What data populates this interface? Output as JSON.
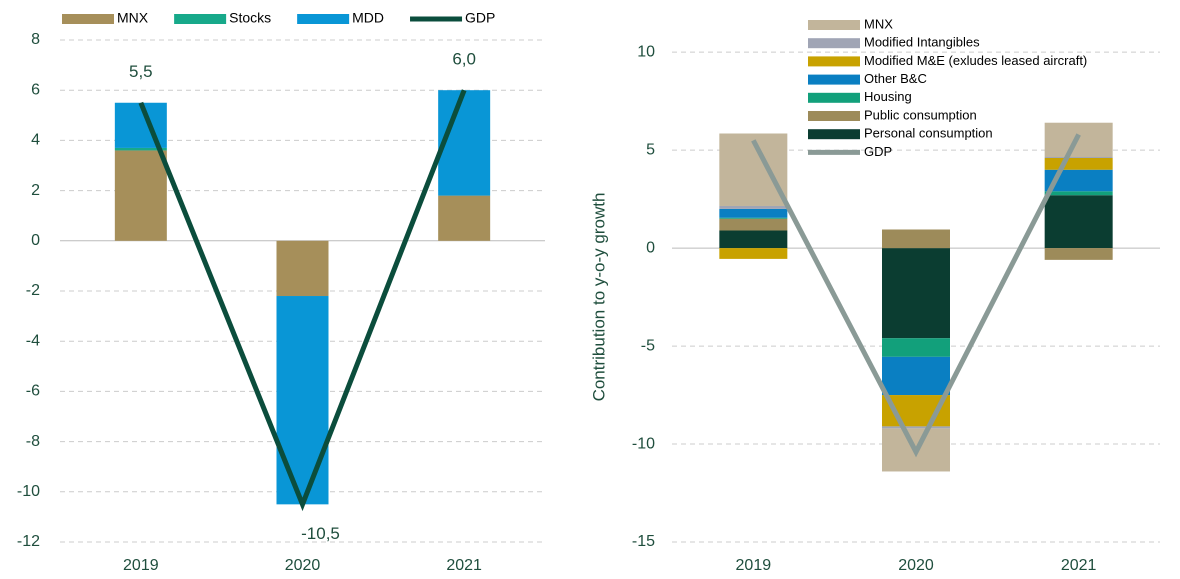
{
  "chart_data": [
    {
      "type": "stacked_bar_line",
      "categories": [
        "2019",
        "2020",
        "2021"
      ],
      "ylim": [
        -12,
        8
      ],
      "yticks": [
        -12,
        -10,
        -8,
        -6,
        -4,
        -2,
        0,
        2,
        4,
        6,
        8
      ],
      "grid": true,
      "legend": "top",
      "series": [
        {
          "name": "MNX",
          "color": "#a68f5a",
          "values": [
            3.6,
            -2.2,
            1.8
          ]
        },
        {
          "name": "Stocks",
          "color": "#17a98a",
          "values": [
            0.1,
            0,
            0
          ]
        },
        {
          "name": "MDD",
          "color": "#0996d6",
          "values": [
            1.8,
            -8.3,
            4.2
          ]
        },
        {
          "name": "GDP",
          "kind": "line",
          "color": "#0b4d3c",
          "values": [
            5.5,
            -10.5,
            6.0
          ],
          "value_labels": [
            "5,5",
            "-10,5",
            "6,0"
          ]
        }
      ]
    },
    {
      "type": "stacked_bar_line",
      "y_label": "Contribution to y-o-y growth",
      "categories": [
        "2019",
        "2020",
        "2021"
      ],
      "ylim": [
        -15,
        12
      ],
      "yticks": [
        -15,
        -10,
        -5,
        0,
        5,
        10
      ],
      "grid": true,
      "legend": "column",
      "series": [
        {
          "name": "Personal consumption",
          "color": "#0b3d31",
          "values": [
            0.9,
            -4.6,
            2.7
          ]
        },
        {
          "name": "Public consumption",
          "color": "#9d8b5a",
          "values": [
            0.6,
            0.95,
            -0.6
          ]
        },
        {
          "name": "Housing",
          "color": "#12a07b",
          "values": [
            0.05,
            -0.95,
            0.2
          ]
        },
        {
          "name": "Other B&C",
          "color": "#0a7fc2",
          "values": [
            0.45,
            -1.95,
            1.1
          ]
        },
        {
          "name": "Modified M&E (exludes leased aircraft)",
          "color": "#c8a200",
          "values": [
            -0.55,
            -1.6,
            0.6
          ]
        },
        {
          "name": "Modified Intangibles",
          "color": "#a0a5b5",
          "values": [
            0.15,
            -0.1,
            0.05
          ]
        },
        {
          "name": "MNX",
          "color": "#c2b59b",
          "values": [
            3.7,
            -2.2,
            1.75
          ]
        },
        {
          "name": "GDP",
          "kind": "line",
          "color": "#8a9a96",
          "values": [
            5.5,
            -10.4,
            5.8
          ]
        }
      ]
    }
  ]
}
